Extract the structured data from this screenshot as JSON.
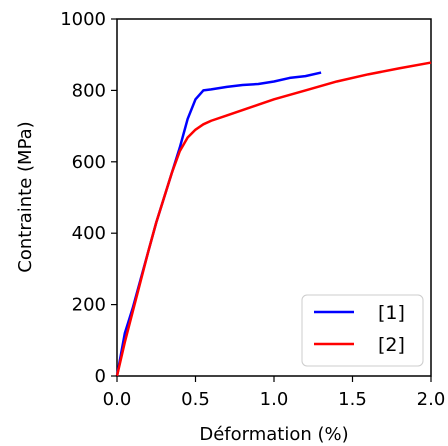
{
  "chart_data": {
    "type": "line",
    "xlabel": "Déformation (%)",
    "ylabel": "Contrainte (MPa)",
    "xlim": [
      0.0,
      2.0
    ],
    "ylim": [
      0,
      1000
    ],
    "xticks": [
      0.0,
      0.5,
      1.0,
      1.5,
      2.0
    ],
    "xtick_labels": [
      "0.0",
      "0.5",
      "1.0",
      "1.5",
      "2.0"
    ],
    "yticks": [
      0,
      200,
      400,
      600,
      800,
      1000
    ],
    "ytick_labels": [
      "0",
      "200",
      "400",
      "600",
      "800",
      "1000"
    ],
    "grid": false,
    "legend_position": "bottom-right",
    "series": [
      {
        "name": "[1]",
        "color": "#0000ff",
        "x": [
          0.0,
          0.05,
          0.1,
          0.15,
          0.2,
          0.25,
          0.3,
          0.35,
          0.4,
          0.45,
          0.5,
          0.55,
          0.6,
          0.7,
          0.8,
          0.9,
          1.0,
          1.1,
          1.2,
          1.3
        ],
        "y": [
          0,
          120,
          190,
          270,
          350,
          430,
          500,
          570,
          640,
          720,
          775,
          800,
          803,
          810,
          815,
          818,
          825,
          835,
          840,
          850
        ]
      },
      {
        "name": "[2]",
        "color": "#ff0000",
        "x": [
          0.0,
          0.05,
          0.1,
          0.15,
          0.2,
          0.25,
          0.3,
          0.35,
          0.4,
          0.45,
          0.5,
          0.55,
          0.6,
          0.7,
          0.8,
          0.9,
          1.0,
          1.2,
          1.4,
          1.6,
          1.8,
          2.0
        ],
        "y": [
          0,
          95,
          180,
          265,
          350,
          430,
          500,
          570,
          630,
          668,
          690,
          705,
          715,
          730,
          745,
          760,
          775,
          800,
          825,
          845,
          862,
          878
        ]
      }
    ]
  }
}
